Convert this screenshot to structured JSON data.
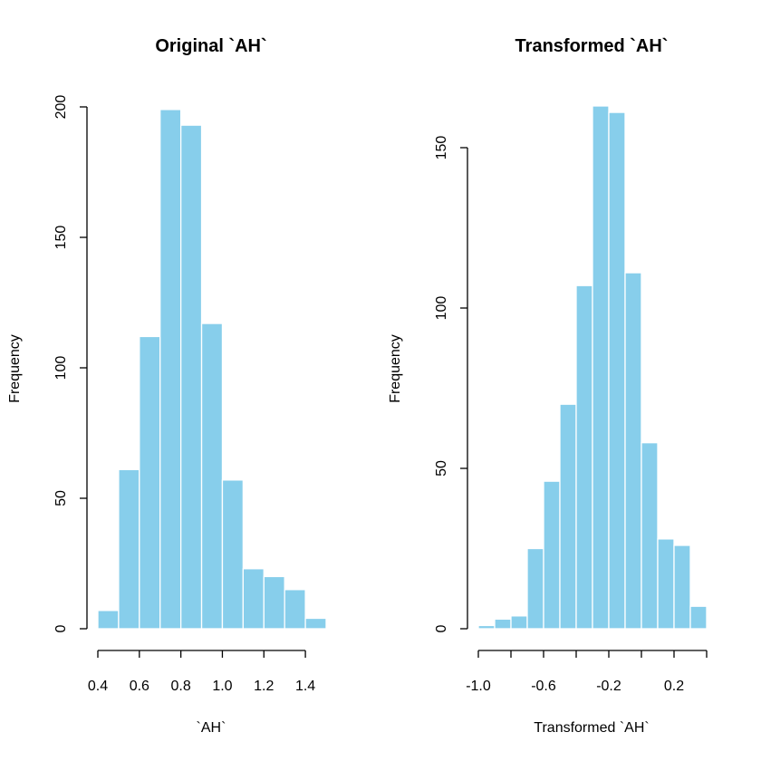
{
  "chart_data": [
    {
      "type": "bar",
      "title": "Original `AH`",
      "xlabel": "`AH`",
      "ylabel": "Frequency",
      "bin_edges": [
        0.4,
        0.5,
        0.6,
        0.7,
        0.8,
        0.9,
        1.0,
        1.1,
        1.2,
        1.3,
        1.4,
        1.5
      ],
      "values": [
        7,
        61,
        112,
        199,
        193,
        117,
        57,
        23,
        20,
        15,
        4
      ],
      "xlim": [
        0.4,
        1.5
      ],
      "ylim": [
        0,
        200
      ],
      "x_ticks": [
        0.4,
        0.6,
        0.8,
        1.0,
        1.2,
        1.4
      ],
      "x_tick_labels": [
        "0.4",
        "0.6",
        "0.8",
        "1.0",
        "1.2",
        "1.4"
      ],
      "y_ticks": [
        0,
        50,
        100,
        150,
        200
      ],
      "y_tick_labels": [
        "0",
        "50",
        "100",
        "150",
        "200"
      ],
      "bar_color": "#87CEEB",
      "grid": false
    },
    {
      "type": "bar",
      "title": "Transformed `AH`",
      "xlabel": "Transformed `AH`",
      "ylabel": "Frequency",
      "bin_edges": [
        -1.0,
        -0.9,
        -0.8,
        -0.7,
        -0.6,
        -0.5,
        -0.4,
        -0.3,
        -0.2,
        -0.1,
        0.0,
        0.1,
        0.2,
        0.3,
        0.4
      ],
      "values": [
        1,
        3,
        4,
        25,
        46,
        70,
        107,
        163,
        161,
        111,
        58,
        28,
        26,
        7
      ],
      "xlim": [
        -1.0,
        0.4
      ],
      "ylim": [
        0,
        160
      ],
      "x_ticks": [
        -1.0,
        -0.8,
        -0.6,
        -0.4,
        -0.2,
        0.0,
        0.2,
        0.4
      ],
      "x_tick_labels": [
        "-1.0",
        "",
        "-0.6",
        "",
        "-0.2",
        "",
        "0.2",
        ""
      ],
      "y_ticks": [
        0,
        50,
        100,
        150
      ],
      "y_tick_labels": [
        "0",
        "50",
        "100",
        "150"
      ],
      "bar_color": "#87CEEB",
      "grid": false
    }
  ]
}
